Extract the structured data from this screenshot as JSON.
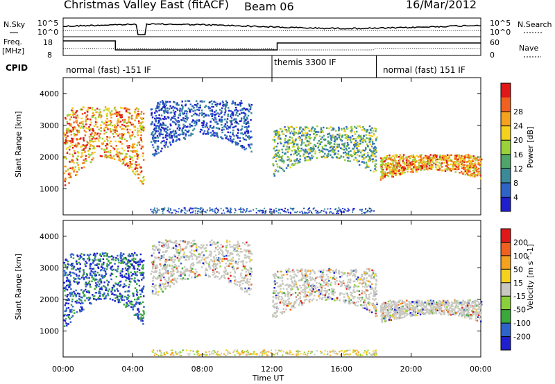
{
  "header": {
    "station": "Christmas Valley East (fitACF)",
    "beam": "Beam 06",
    "date": "16/Mar/2012"
  },
  "side_labels": {
    "nsky": "N.Sky",
    "nsearch": "N.Search",
    "freq": "Freq.",
    "freq_unit": "[MHz]",
    "nave": "Nave",
    "cpid": "CPID"
  },
  "noise_axis": {
    "left_ticks": [
      "10^5",
      "10^0"
    ],
    "right_ticks": [
      "10^5",
      "10^0"
    ]
  },
  "freq_axis": {
    "left_ticks": [
      "18",
      "8"
    ],
    "right_ticks": [
      "60",
      "0"
    ]
  },
  "cpid_segments": [
    {
      "label": "normal (fast) -151 IF",
      "start_hour": 0.0,
      "end_hour": 12.0
    },
    {
      "label": "themis 3300 IF",
      "start_hour": 12.0,
      "end_hour": 18.0
    },
    {
      "label": "normal (fast) 151 IF",
      "start_hour": 18.0,
      "end_hour": 24.0
    }
  ],
  "x_axis": {
    "label": "Time UT",
    "ticks": [
      "00:00",
      "04:00",
      "08:00",
      "12:00",
      "16:00",
      "20:00",
      "00:00"
    ],
    "range_hours": [
      0,
      24
    ]
  },
  "chart_data": [
    {
      "type": "heatmap",
      "name": "power",
      "ylabel": "Slant Range [km]",
      "yticks": [
        1000,
        2000,
        3000,
        4000
      ],
      "ylim": [
        180,
        4500
      ],
      "colorbar": {
        "label": "Power [dB]",
        "ticks": [
          "4",
          "8",
          "12",
          "16",
          "20",
          "24",
          "28"
        ],
        "colors": [
          "#1f1fd0",
          "#2e63c8",
          "#3a8a9a",
          "#4fa56a",
          "#9ad23a",
          "#f5d21e",
          "#f5a21e",
          "#f0601e",
          "#e01818"
        ]
      },
      "bands": [
        {
          "start_hour": 0.0,
          "end_hour": 4.6,
          "range_km": [
            700,
            3600
          ],
          "level": "high"
        },
        {
          "start_hour": 5.0,
          "end_hour": 10.8,
          "range_km": [
            1800,
            3800
          ],
          "level": "low"
        },
        {
          "start_hour": 12.0,
          "end_hour": 18.0,
          "range_km": [
            1200,
            3000
          ],
          "level": "mid"
        },
        {
          "start_hour": 18.2,
          "end_hour": 24.0,
          "range_km": [
            1200,
            2100
          ],
          "level": "high"
        }
      ]
    },
    {
      "type": "heatmap",
      "name": "velocity",
      "ylabel": "Slant Range [km]",
      "yticks": [
        1000,
        2000,
        3000,
        4000
      ],
      "ylim": [
        180,
        4500
      ],
      "colorbar": {
        "label": "Velocity [m s^-1]",
        "ticks": [
          "200",
          "100",
          "50",
          "15",
          "-15",
          "-50",
          "-100",
          "-200"
        ],
        "colors": [
          "#1f1fd0",
          "#2e63c8",
          "#3aa83a",
          "#8ad03a",
          "#c8c8c0",
          "#f5d21e",
          "#f5a21e",
          "#f0601e",
          "#e01818"
        ]
      },
      "bands": [
        {
          "start_hour": 0.0,
          "end_hour": 4.6,
          "range_km": [
            800,
            3500
          ],
          "level": "toward"
        },
        {
          "start_hour": 5.0,
          "end_hour": 10.8,
          "range_km": [
            1800,
            3900
          ],
          "level": "ground"
        },
        {
          "start_hour": 12.0,
          "end_hour": 18.0,
          "range_km": [
            1200,
            3000
          ],
          "level": "ground"
        },
        {
          "start_hour": 18.2,
          "end_hour": 24.0,
          "range_km": [
            1200,
            2000
          ],
          "level": "ground"
        }
      ]
    }
  ]
}
